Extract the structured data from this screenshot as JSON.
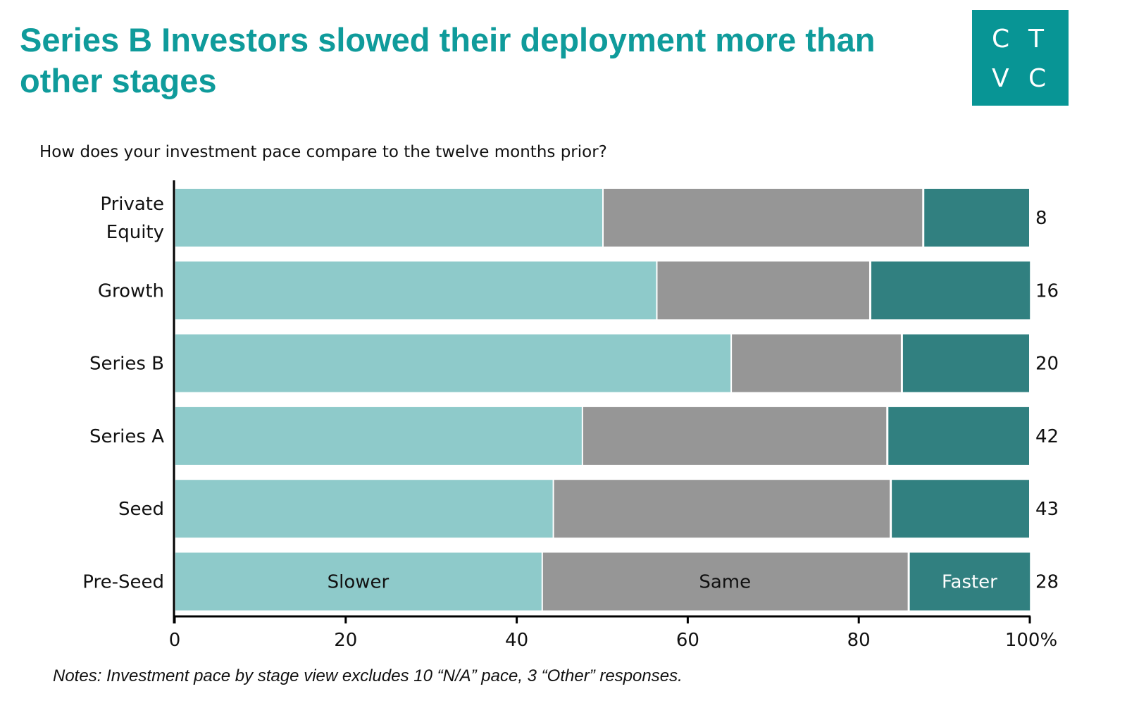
{
  "header": {
    "title": "Series B Investors slowed their deployment more than other stages",
    "logo_letters": [
      "C",
      "T",
      "V",
      "C"
    ]
  },
  "colors": {
    "title": "#0f9b9b",
    "logo_bg": "#089595",
    "slower": "#8ecaca",
    "same": "#969696",
    "faster": "#318080"
  },
  "chart_data": {
    "type": "bar",
    "orientation": "horizontal",
    "stacked": true,
    "normalized_percent": true,
    "title": "How does your investment pace compare to the twelve months prior?",
    "categories": [
      "Private Equity",
      "Growth",
      "Series B",
      "Series A",
      "Seed",
      "Pre-Seed"
    ],
    "category_label_lines": [
      [
        "Private",
        "Equity"
      ],
      [
        "Growth"
      ],
      [
        "Series B"
      ],
      [
        "Series A"
      ],
      [
        "Seed"
      ],
      [
        "Pre-Seed"
      ]
    ],
    "series": [
      {
        "name": "Slower",
        "values": [
          50.0,
          56.3,
          65.0,
          47.6,
          44.2,
          42.9
        ]
      },
      {
        "name": "Same",
        "values": [
          37.5,
          25.0,
          20.0,
          35.7,
          39.5,
          42.9
        ]
      },
      {
        "name": "Faster",
        "values": [
          12.5,
          18.8,
          15.0,
          16.7,
          16.3,
          14.3
        ]
      }
    ],
    "in_bar_labels": {
      "row": "Pre-Seed",
      "labels": [
        "Slower",
        "Same",
        "Faster"
      ]
    },
    "response_counts": [
      8,
      16,
      20,
      42,
      43,
      28
    ],
    "xlim": [
      0,
      100
    ],
    "x_ticks": [
      0,
      20,
      40,
      60,
      80,
      100
    ],
    "x_tick_labels": [
      "0",
      "20",
      "40",
      "60",
      "80",
      "100%"
    ],
    "xlabel": "",
    "ylabel": "",
    "grid": false,
    "legend": "none"
  },
  "notes": "Notes: Investment pace by stage view excludes 10 “N/A” pace, 3 “Other” responses."
}
